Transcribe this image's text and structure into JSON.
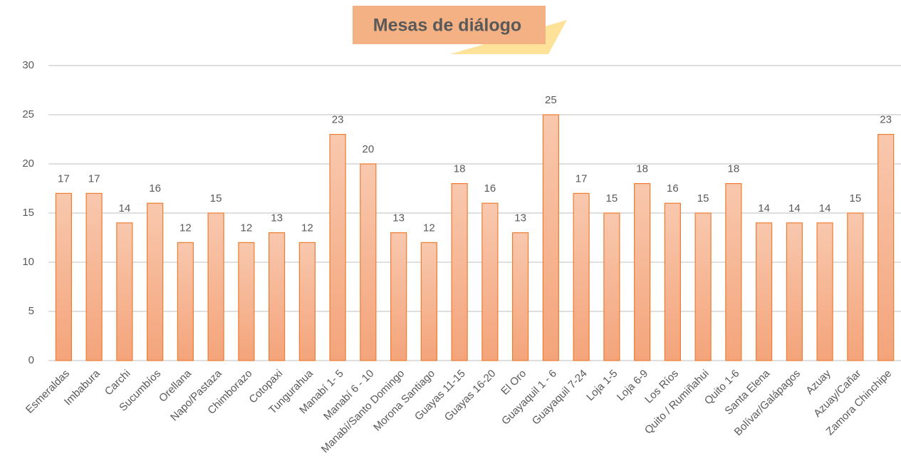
{
  "chart_data": {
    "type": "bar",
    "title": "Mesas de diálogo",
    "categories": [
      "Esmeraldas",
      "Imbabura",
      "Carchi",
      "Sucumbíos",
      "Orellana",
      "Napo/Pastaza",
      "Chimborazo",
      "Cotopaxi",
      "Tungurahua",
      "Manabí 1- 5",
      "Manabí 6 - 10",
      "Manabí/Santo Domingo",
      "Morona Santiago",
      "Guayas 11-15",
      "Guayas 16-20",
      "El Oro",
      "Guayaquil 1 - 6",
      "Guayaquil 7-24",
      "Loja 1-5",
      "Loja 6-9",
      "Los Ríos",
      "Quito / Rumiñahui",
      "Quito 1-6",
      "Santa Elena",
      "Bolívar/Galápagos",
      "Azuay",
      "Azuay/Cañar",
      "Zamora Chinchipe"
    ],
    "values": [
      17,
      17,
      14,
      16,
      12,
      15,
      12,
      13,
      12,
      23,
      20,
      13,
      12,
      18,
      16,
      13,
      25,
      17,
      15,
      18,
      16,
      15,
      18,
      14,
      14,
      14,
      15,
      23
    ],
    "color": "#ed7d31",
    "ylim": [
      0,
      30
    ],
    "yticks": [
      0,
      5,
      10,
      15,
      20,
      25,
      30
    ],
    "grid": true
  }
}
